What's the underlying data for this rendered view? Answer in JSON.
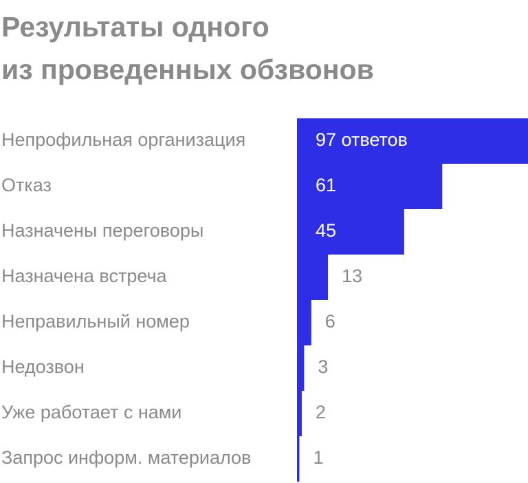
{
  "title_lines": [
    "Результаты одного",
    "из проведенных обзвонов"
  ],
  "colors": {
    "bar": "#2e2ee6",
    "text": "#8a8a8a",
    "label_inside": "#ffffff"
  },
  "chart_data": {
    "type": "bar",
    "orientation": "horizontal",
    "categories": [
      "Непрофильная организация",
      "Отказ",
      "Назначены переговоры",
      "Назначена встреча",
      "Неправильный номер",
      "Недозвон",
      "Уже работает с нами",
      "Запрос информ. материалов"
    ],
    "values": [
      97,
      61,
      45,
      13,
      6,
      3,
      2,
      1
    ],
    "value_labels": [
      "97 ответов",
      "61",
      "45",
      "13",
      "6",
      "3",
      "2",
      "1"
    ],
    "title": "Результаты одного из проведенных обзвонов",
    "xlim": [
      0,
      97
    ],
    "grid": false,
    "legend": "none"
  }
}
